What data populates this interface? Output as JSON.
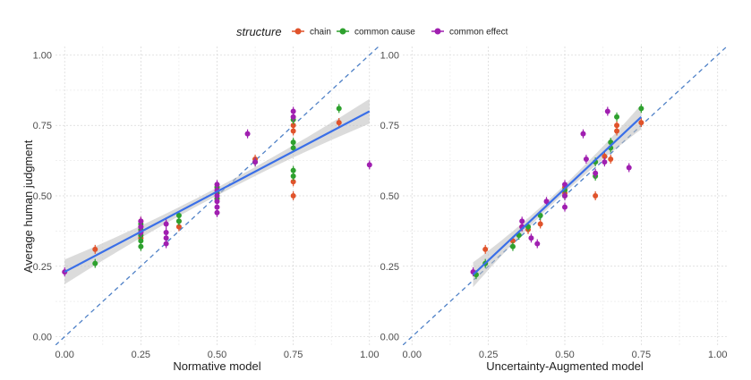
{
  "legend": {
    "title": "structure",
    "items": [
      {
        "label": "chain",
        "color": "#e0532b"
      },
      {
        "label": "common cause",
        "color": "#2ea12e"
      },
      {
        "label": "common effect",
        "color": "#a01fb0"
      }
    ]
  },
  "chart_data": [
    {
      "type": "scatter",
      "title": "",
      "xlabel": "Normative model",
      "ylabel": "Average human judgment",
      "xlim": [
        -0.03,
        1.03
      ],
      "ylim": [
        -0.03,
        1.03
      ],
      "x_ticks": [
        "0.00",
        "0.25",
        "0.50",
        "0.75",
        "1.00"
      ],
      "y_ticks": [
        "0.00",
        "0.25",
        "0.50",
        "0.75",
        "1.00"
      ],
      "grid": true,
      "identity_line": true,
      "regression_line": {
        "x": [
          0.0,
          1.0
        ],
        "y": [
          0.23,
          0.8
        ]
      },
      "series": [
        {
          "name": "chain",
          "x": [
            0.1,
            0.25,
            0.25,
            0.25,
            0.25,
            0.375,
            0.375,
            0.5,
            0.5,
            0.5,
            0.625,
            0.75,
            0.75,
            0.75,
            0.75,
            0.9
          ],
          "y": [
            0.31,
            0.41,
            0.39,
            0.37,
            0.35,
            0.41,
            0.39,
            0.53,
            0.51,
            0.49,
            0.63,
            0.75,
            0.73,
            0.55,
            0.5,
            0.76
          ]
        },
        {
          "name": "common cause",
          "x": [
            0.1,
            0.25,
            0.25,
            0.25,
            0.25,
            0.25,
            0.375,
            0.375,
            0.5,
            0.5,
            0.5,
            0.625,
            0.75,
            0.75,
            0.75,
            0.75,
            0.75,
            0.9
          ],
          "y": [
            0.26,
            0.4,
            0.38,
            0.36,
            0.34,
            0.32,
            0.43,
            0.41,
            0.53,
            0.51,
            0.49,
            0.62,
            0.77,
            0.69,
            0.67,
            0.59,
            0.57,
            0.81
          ]
        },
        {
          "name": "common effect",
          "x": [
            0.0,
            0.25,
            0.25,
            0.25,
            0.333,
            0.333,
            0.333,
            0.333,
            0.5,
            0.5,
            0.5,
            0.5,
            0.5,
            0.5,
            0.6,
            0.625,
            0.75,
            0.75,
            1.0
          ],
          "y": [
            0.23,
            0.41,
            0.39,
            0.37,
            0.4,
            0.37,
            0.35,
            0.33,
            0.54,
            0.52,
            0.5,
            0.48,
            0.46,
            0.44,
            0.72,
            0.62,
            0.8,
            0.78,
            0.61
          ]
        }
      ]
    },
    {
      "type": "scatter",
      "title": "",
      "xlabel": "Uncertainty-Augmented model",
      "ylabel": "",
      "xlim": [
        -0.03,
        1.03
      ],
      "ylim": [
        -0.03,
        1.03
      ],
      "x_ticks": [
        "0.00",
        "0.25",
        "0.50",
        "0.75",
        "1.00"
      ],
      "y_ticks": [
        "0.00",
        "0.25",
        "0.50",
        "0.75",
        "1.00"
      ],
      "grid": true,
      "identity_line": true,
      "regression_line": {
        "x": [
          0.2,
          0.75
        ],
        "y": [
          0.22,
          0.78
        ]
      },
      "series": [
        {
          "name": "chain",
          "x": [
            0.24,
            0.33,
            0.36,
            0.38,
            0.42,
            0.5,
            0.5,
            0.6,
            0.63,
            0.65,
            0.67,
            0.67,
            0.75
          ],
          "y": [
            0.31,
            0.34,
            0.39,
            0.38,
            0.4,
            0.53,
            0.51,
            0.5,
            0.64,
            0.63,
            0.75,
            0.73,
            0.76
          ]
        },
        {
          "name": "common cause",
          "x": [
            0.21,
            0.24,
            0.33,
            0.35,
            0.38,
            0.42,
            0.5,
            0.5,
            0.6,
            0.6,
            0.65,
            0.65,
            0.67,
            0.75
          ],
          "y": [
            0.22,
            0.26,
            0.32,
            0.36,
            0.39,
            0.43,
            0.5,
            0.52,
            0.57,
            0.62,
            0.67,
            0.69,
            0.78,
            0.81
          ]
        },
        {
          "name": "common effect",
          "x": [
            0.2,
            0.36,
            0.36,
            0.39,
            0.41,
            0.44,
            0.5,
            0.5,
            0.5,
            0.56,
            0.57,
            0.6,
            0.63,
            0.64,
            0.71
          ],
          "y": [
            0.23,
            0.41,
            0.39,
            0.35,
            0.33,
            0.48,
            0.54,
            0.5,
            0.46,
            0.72,
            0.63,
            0.58,
            0.62,
            0.8,
            0.6
          ]
        }
      ]
    }
  ]
}
